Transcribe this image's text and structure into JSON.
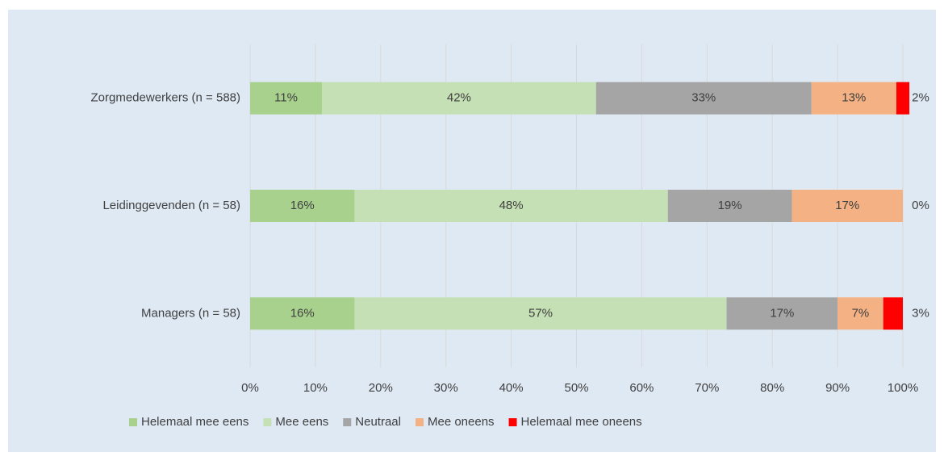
{
  "chart_data": {
    "type": "stacked-horizontal-bar",
    "categories": [
      "Zorgmedewerkers (n = 588)",
      "Leidinggevenden (n = 58)",
      "Managers (n = 58)"
    ],
    "series": [
      {
        "name": "Helemaal mee eens",
        "color": "#a9d18e",
        "values": [
          11,
          16,
          16
        ],
        "value_labels": [
          "11%",
          "16%",
          "16%"
        ]
      },
      {
        "name": "Mee eens",
        "color": "#c5e0b4",
        "values": [
          42,
          48,
          57
        ],
        "value_labels": [
          "42%",
          "48%",
          "57%"
        ]
      },
      {
        "name": "Neutraal",
        "color": "#a5a5a5",
        "values": [
          33,
          19,
          17
        ],
        "value_labels": [
          "33%",
          "19%",
          "17%"
        ]
      },
      {
        "name": "Mee oneens",
        "color": "#f4b183",
        "values": [
          13,
          17,
          7
        ],
        "value_labels": [
          "13%",
          "17%",
          "7%"
        ]
      },
      {
        "name": "Helemaal mee oneens",
        "color": "#ff0000",
        "values": [
          2,
          0,
          3
        ],
        "value_labels": [
          "2%",
          "0%",
          "3%"
        ]
      }
    ],
    "xlim": [
      0,
      100
    ],
    "xticks": [
      {
        "value": 0,
        "label": "0%"
      },
      {
        "value": 10,
        "label": "10%"
      },
      {
        "value": 20,
        "label": "20%"
      },
      {
        "value": 30,
        "label": "30%"
      },
      {
        "value": 40,
        "label": "40%"
      },
      {
        "value": 50,
        "label": "50%"
      },
      {
        "value": 60,
        "label": "60%"
      },
      {
        "value": 70,
        "label": "70%"
      },
      {
        "value": 80,
        "label": "80%"
      },
      {
        "value": 90,
        "label": "90%"
      },
      {
        "value": 100,
        "label": "100%"
      }
    ],
    "grid": true,
    "legend": "bottom"
  }
}
